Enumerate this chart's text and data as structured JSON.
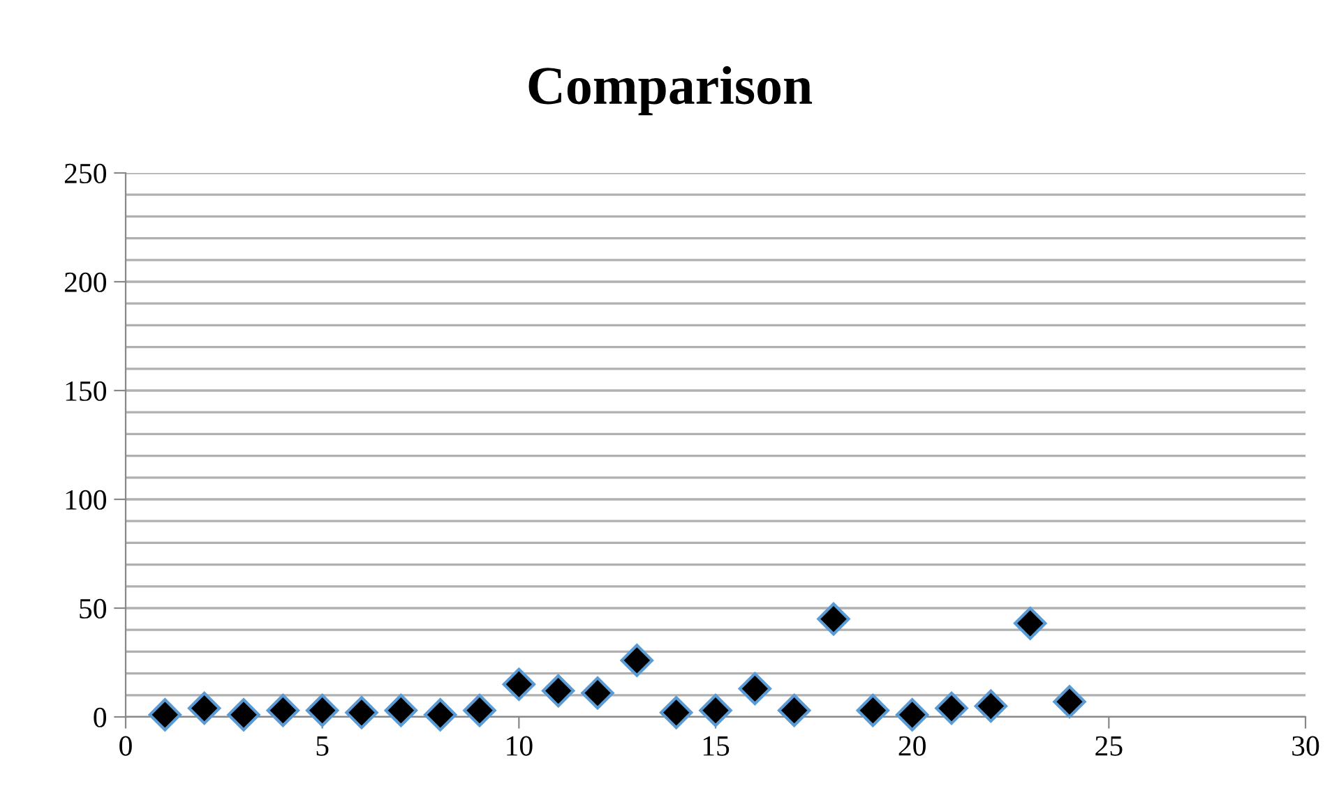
{
  "chart_data": {
    "type": "scatter",
    "title": "Comparison",
    "x": [
      1,
      2,
      3,
      4,
      5,
      6,
      7,
      8,
      9,
      10,
      11,
      12,
      13,
      14,
      15,
      16,
      17,
      18,
      19,
      20,
      21,
      22,
      23,
      24
    ],
    "values": [
      1,
      4,
      1,
      3,
      3,
      2,
      3,
      1,
      3,
      15,
      12,
      11,
      26,
      2,
      3,
      13,
      3,
      45,
      3,
      1,
      4,
      5,
      43,
      7
    ],
    "color": "#000000",
    "marker": "diamond",
    "xlim": [
      0,
      30
    ],
    "xticks": [
      0,
      5,
      10,
      15,
      20,
      25,
      30
    ],
    "ylim": [
      0,
      250
    ],
    "yticks": [
      0,
      {
        "value": 10,
        "label": null
      },
      {
        "value": 20,
        "label": null
      },
      {
        "value": 30,
        "label": null
      },
      {
        "value": 40,
        "label": null
      },
      50,
      {
        "value": 60,
        "label": null
      },
      {
        "value": 70,
        "label": null
      },
      {
        "value": 80,
        "label": null
      },
      {
        "value": 90,
        "label": null
      },
      100,
      {
        "value": 110,
        "label": null
      },
      {
        "value": 120,
        "label": null
      },
      {
        "value": 130,
        "label": null
      },
      {
        "value": 140,
        "label": null
      },
      150,
      {
        "value": 160,
        "label": null
      },
      {
        "value": 170,
        "label": null
      },
      {
        "value": 180,
        "label": null
      },
      {
        "value": 190,
        "label": null
      },
      200,
      {
        "value": 210,
        "label": null
      },
      {
        "value": 220,
        "label": null
      },
      {
        "value": 230,
        "label": null
      },
      {
        "value": 240,
        "label": null
      },
      250
    ],
    "grid": "y"
  }
}
